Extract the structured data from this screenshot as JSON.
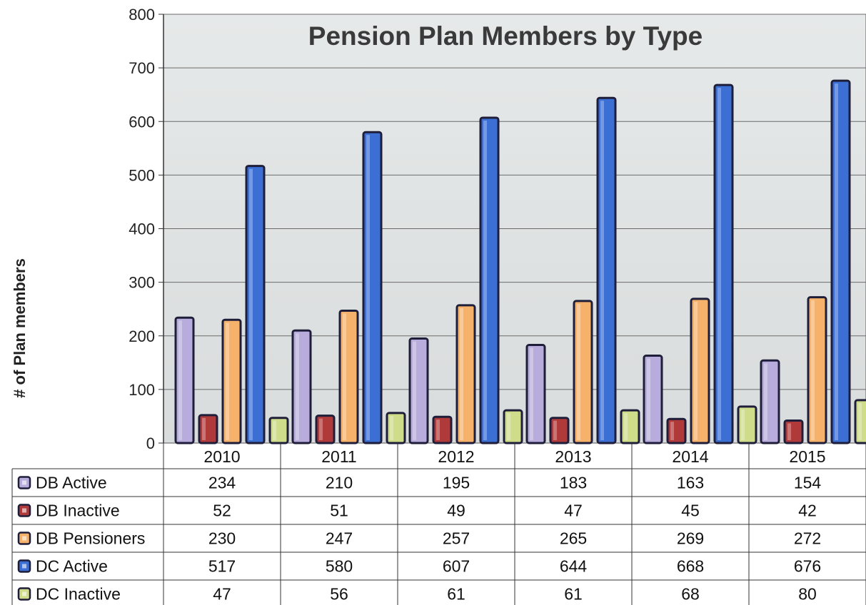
{
  "chart_data": {
    "type": "bar",
    "title": "Pension Plan Members by Type",
    "ylabel": "# of Plan members",
    "xlabel": "",
    "ylim": [
      0,
      800
    ],
    "yticks": [
      0,
      100,
      200,
      300,
      400,
      500,
      600,
      700,
      800
    ],
    "categories": [
      "2010",
      "2011",
      "2012",
      "2013",
      "2014",
      "2015"
    ],
    "series": [
      {
        "name": "DB Active",
        "values": [
          234,
          210,
          195,
          183,
          163,
          154
        ],
        "color": "#b8acdc"
      },
      {
        "name": "DB Inactive",
        "values": [
          52,
          51,
          49,
          47,
          45,
          42
        ],
        "color": "#b03a3a"
      },
      {
        "name": "DB Pensioners",
        "values": [
          230,
          247,
          257,
          265,
          269,
          272
        ],
        "color": "#f6b26b"
      },
      {
        "name": "DC Active",
        "values": [
          517,
          580,
          607,
          644,
          668,
          676
        ],
        "color": "#3b6fd4"
      },
      {
        "name": "DC Inactive",
        "values": [
          47,
          56,
          61,
          61,
          68,
          80
        ],
        "color": "#cfdc8a"
      }
    ],
    "grid": true,
    "legend": "data-table",
    "plot_background": "#dfe3e3"
  }
}
